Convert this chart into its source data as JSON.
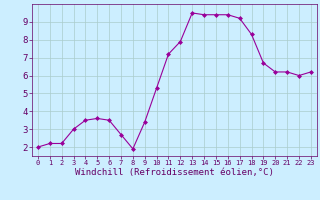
{
  "x": [
    0,
    1,
    2,
    3,
    4,
    5,
    6,
    7,
    8,
    9,
    10,
    11,
    12,
    13,
    14,
    15,
    16,
    17,
    18,
    19,
    20,
    21,
    22,
    23
  ],
  "y": [
    2.0,
    2.2,
    2.2,
    3.0,
    3.5,
    3.6,
    3.5,
    2.7,
    1.9,
    3.4,
    5.3,
    7.2,
    7.9,
    9.5,
    9.4,
    9.4,
    9.4,
    9.2,
    8.3,
    6.7,
    6.2,
    6.2,
    6.0,
    6.2
  ],
  "line_color": "#990099",
  "marker": "D",
  "marker_size": 2.0,
  "bg_color": "#cceeff",
  "grid_color": "#aacccc",
  "xlabel": "Windchill (Refroidissement éolien,°C)",
  "xlabel_color": "#660066",
  "xlabel_fontsize": 6.5,
  "tick_color": "#660066",
  "tick_fontsize": 6.5,
  "ylim": [
    1.5,
    10.0
  ],
  "xlim": [
    -0.5,
    23.5
  ],
  "yticks": [
    2,
    3,
    4,
    5,
    6,
    7,
    8,
    9
  ],
  "xticks": [
    0,
    1,
    2,
    3,
    4,
    5,
    6,
    7,
    8,
    9,
    10,
    11,
    12,
    13,
    14,
    15,
    16,
    17,
    18,
    19,
    20,
    21,
    22,
    23
  ]
}
